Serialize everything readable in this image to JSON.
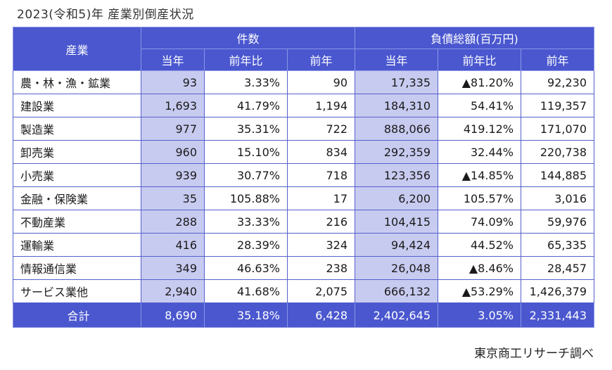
{
  "title": "2023(令和5)年 産業別倒産状況",
  "headers": {
    "industry": "産業",
    "count_group": "件数",
    "debt_group": "負債総額(百万円)",
    "sub": [
      "当年",
      "前年比",
      "前年",
      "当年",
      "前年比",
      "前年"
    ]
  },
  "rows": [
    {
      "name": "農・林・漁・鉱業",
      "c_cur": "93",
      "c_ratio": "3.33%",
      "c_prev": "90",
      "d_cur": "17,335",
      "d_ratio": "▲81.20%",
      "d_prev": "92,230"
    },
    {
      "name": "建設業",
      "c_cur": "1,693",
      "c_ratio": "41.79%",
      "c_prev": "1,194",
      "d_cur": "184,310",
      "d_ratio": "54.41%",
      "d_prev": "119,357"
    },
    {
      "name": "製造業",
      "c_cur": "977",
      "c_ratio": "35.31%",
      "c_prev": "722",
      "d_cur": "888,066",
      "d_ratio": "419.12%",
      "d_prev": "171,070"
    },
    {
      "name": "卸売業",
      "c_cur": "960",
      "c_ratio": "15.10%",
      "c_prev": "834",
      "d_cur": "292,359",
      "d_ratio": "32.44%",
      "d_prev": "220,738"
    },
    {
      "name": "小売業",
      "c_cur": "939",
      "c_ratio": "30.77%",
      "c_prev": "718",
      "d_cur": "123,356",
      "d_ratio": "▲14.85%",
      "d_prev": "144,885"
    },
    {
      "name": "金融・保険業",
      "c_cur": "35",
      "c_ratio": "105.88%",
      "c_prev": "17",
      "d_cur": "6,200",
      "d_ratio": "105.57%",
      "d_prev": "3,016"
    },
    {
      "name": "不動産業",
      "c_cur": "288",
      "c_ratio": "33.33%",
      "c_prev": "216",
      "d_cur": "104,415",
      "d_ratio": "74.09%",
      "d_prev": "59,976"
    },
    {
      "name": "運輸業",
      "c_cur": "416",
      "c_ratio": "28.39%",
      "c_prev": "324",
      "d_cur": "94,424",
      "d_ratio": "44.52%",
      "d_prev": "65,335"
    },
    {
      "name": "情報通信業",
      "c_cur": "349",
      "c_ratio": "46.63%",
      "c_prev": "238",
      "d_cur": "26,048",
      "d_ratio": "▲8.46%",
      "d_prev": "28,457"
    },
    {
      "name": "サービス業他",
      "c_cur": "2,940",
      "c_ratio": "41.68%",
      "c_prev": "2,075",
      "d_cur": "666,132",
      "d_ratio": "▲53.29%",
      "d_prev": "1,426,379"
    }
  ],
  "total": {
    "name": "合計",
    "c_cur": "8,690",
    "c_ratio": "35.18%",
    "c_prev": "6,428",
    "d_cur": "2,402,645",
    "d_ratio": "3.05%",
    "d_prev": "2,331,443"
  },
  "source": "東京商工リサーチ調べ",
  "colors": {
    "header_bg": "#4a57cf",
    "current_col_bg": "#c8cbf0",
    "border": "#5560cc"
  }
}
